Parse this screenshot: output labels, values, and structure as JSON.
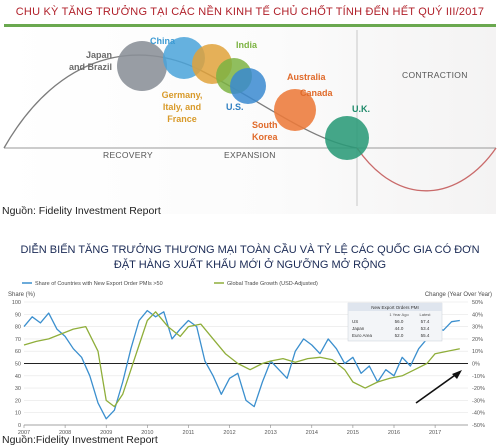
{
  "cycle_chart": {
    "title": "CHU KỲ TĂNG TRƯỞNG TẠI CÁC NỀN KINH TẾ CHỦ CHỐT TÍNH ĐẾN HẾT QUÝ III/2017",
    "phases": [
      "RECOVERY",
      "EXPANSION",
      "CONTRACTION"
    ],
    "countries": [
      {
        "label_lines": [
          "Japan",
          "and Brazil"
        ],
        "color": "#6b6b6b",
        "bubble_color": "#8a8f97"
      },
      {
        "label_lines": [
          "China"
        ],
        "color": "#3c9ad3",
        "bubble_color": "#4aa3d9"
      },
      {
        "label_lines": [
          "Germany,",
          "Italy, and",
          "France"
        ],
        "color": "#d89a2a",
        "bubble_color": "#e0a23b"
      },
      {
        "label_lines": [
          "India"
        ],
        "color": "#7cb342",
        "bubble_color": "#7cb342"
      },
      {
        "label_lines": [
          "U.S."
        ],
        "color": "#2f7fc1",
        "bubble_color": "#3a8ad0"
      },
      {
        "label_lines": [
          "Australia",
          "Canada"
        ],
        "color": "#e06a2a",
        "bubble_color": "#ec7a3a"
      },
      {
        "label_lines": [
          "South",
          "Korea"
        ],
        "color": "#e06a2a",
        "bubble_color": "#ec7a3a"
      },
      {
        "label_lines": [
          "U.K."
        ],
        "color": "#1f8a6a",
        "bubble_color": "#2a9a78"
      }
    ],
    "source": "Nguồn: Fidelity Investment Report"
  },
  "chart_data": {
    "type": "line",
    "title": "DIỄN BIẾN TĂNG TRƯỞNG THƯƠNG MẠI TOÀN CẦU VÀ TỶ LỆ CÁC QUỐC GIA CÓ ĐƠN ĐẶT HÀNG XUẤT KHẨU MỚI Ở NGƯỠNG MỞ RỘNG",
    "left_axis_label": "Share (%)",
    "right_axis_label": "Change (Year Over Year)",
    "left_ticks": [
      100,
      90,
      80,
      70,
      60,
      50,
      40,
      30,
      20,
      10,
      0
    ],
    "right_ticks": [
      "50%",
      "40%",
      "30%",
      "20%",
      "10%",
      "0%",
      "-10%",
      "-20%",
      "-30%",
      "-40%",
      "-50%"
    ],
    "ylim_left": [
      0,
      100
    ],
    "ylim_right": [
      -50,
      50
    ],
    "x_ticks": [
      "2007",
      "2008",
      "2009",
      "2010",
      "2011",
      "2012",
      "2013",
      "2014",
      "2015",
      "2016",
      "2017"
    ],
    "xlim": [
      2007.0,
      2017.8
    ],
    "reference_line_left": 50,
    "series": [
      {
        "name": "Share of Countries with New Export Order PMIs >50",
        "axis": "left",
        "color": "#3b8fce",
        "points": [
          [
            2007.0,
            80
          ],
          [
            2007.2,
            88
          ],
          [
            2007.4,
            83
          ],
          [
            2007.6,
            91
          ],
          [
            2007.8,
            78
          ],
          [
            2008.0,
            72
          ],
          [
            2008.2,
            62
          ],
          [
            2008.4,
            55
          ],
          [
            2008.6,
            40
          ],
          [
            2008.8,
            18
          ],
          [
            2009.0,
            5
          ],
          [
            2009.2,
            12
          ],
          [
            2009.4,
            35
          ],
          [
            2009.6,
            62
          ],
          [
            2009.8,
            85
          ],
          [
            2010.0,
            93
          ],
          [
            2010.2,
            88
          ],
          [
            2010.4,
            92
          ],
          [
            2010.6,
            70
          ],
          [
            2010.8,
            78
          ],
          [
            2011.0,
            85
          ],
          [
            2011.2,
            80
          ],
          [
            2011.4,
            52
          ],
          [
            2011.6,
            40
          ],
          [
            2011.8,
            25
          ],
          [
            2012.0,
            38
          ],
          [
            2012.2,
            42
          ],
          [
            2012.4,
            20
          ],
          [
            2012.6,
            15
          ],
          [
            2012.8,
            35
          ],
          [
            2013.0,
            52
          ],
          [
            2013.2,
            45
          ],
          [
            2013.4,
            38
          ],
          [
            2013.6,
            60
          ],
          [
            2013.8,
            70
          ],
          [
            2014.0,
            65
          ],
          [
            2014.2,
            58
          ],
          [
            2014.4,
            70
          ],
          [
            2014.6,
            62
          ],
          [
            2014.8,
            50
          ],
          [
            2015.0,
            55
          ],
          [
            2015.2,
            42
          ],
          [
            2015.4,
            48
          ],
          [
            2015.6,
            35
          ],
          [
            2015.8,
            45
          ],
          [
            2016.0,
            40
          ],
          [
            2016.2,
            55
          ],
          [
            2016.4,
            48
          ],
          [
            2016.6,
            62
          ],
          [
            2016.8,
            70
          ],
          [
            2017.0,
            80
          ],
          [
            2017.2,
            77
          ],
          [
            2017.4,
            84
          ],
          [
            2017.6,
            85
          ]
        ]
      },
      {
        "name": "Global Trade Growth (USD-Adjusted)",
        "axis": "right",
        "color": "#8fae3a",
        "points": [
          [
            2007.0,
            15
          ],
          [
            2007.3,
            18
          ],
          [
            2007.6,
            20
          ],
          [
            2007.9,
            24
          ],
          [
            2008.2,
            28
          ],
          [
            2008.5,
            30
          ],
          [
            2008.8,
            10
          ],
          [
            2009.0,
            -30
          ],
          [
            2009.2,
            -35
          ],
          [
            2009.4,
            -25
          ],
          [
            2009.6,
            -5
          ],
          [
            2009.8,
            15
          ],
          [
            2010.0,
            35
          ],
          [
            2010.2,
            42
          ],
          [
            2010.5,
            30
          ],
          [
            2010.8,
            22
          ],
          [
            2011.0,
            30
          ],
          [
            2011.3,
            32
          ],
          [
            2011.6,
            20
          ],
          [
            2011.9,
            8
          ],
          [
            2012.2,
            0
          ],
          [
            2012.5,
            -5
          ],
          [
            2012.8,
            0
          ],
          [
            2013.0,
            2
          ],
          [
            2013.3,
            4
          ],
          [
            2013.6,
            1
          ],
          [
            2013.9,
            4
          ],
          [
            2014.2,
            5
          ],
          [
            2014.5,
            3
          ],
          [
            2014.8,
            -5
          ],
          [
            2015.0,
            -15
          ],
          [
            2015.3,
            -20
          ],
          [
            2015.6,
            -15
          ],
          [
            2015.9,
            -12
          ],
          [
            2016.2,
            -10
          ],
          [
            2016.5,
            -5
          ],
          [
            2016.8,
            0
          ],
          [
            2017.0,
            8
          ],
          [
            2017.3,
            10
          ],
          [
            2017.6,
            12
          ]
        ]
      }
    ],
    "inset_table": {
      "header": "New Export Orders PMI",
      "columns": [
        "",
        "1 Year Ago",
        "Latest"
      ],
      "rows": [
        [
          "US",
          "56.0",
          "57.4"
        ],
        [
          "Japan",
          "44.0",
          "53.4"
        ],
        [
          "Euro Area",
          "52.0",
          "55.4"
        ]
      ]
    },
    "source": "Nguồn:Fidelity Investment Report"
  }
}
